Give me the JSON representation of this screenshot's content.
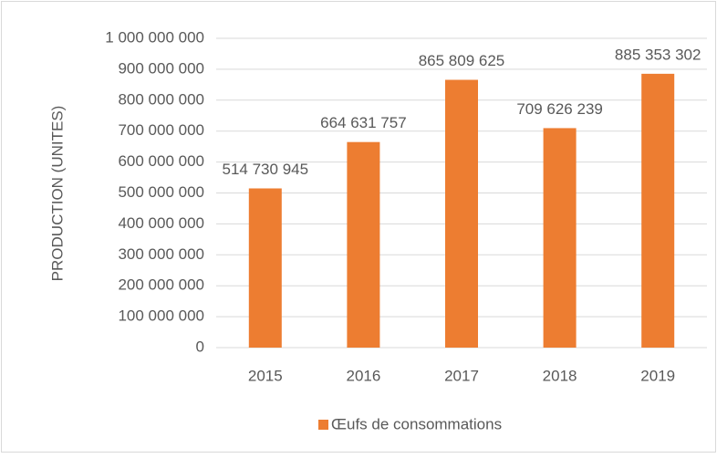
{
  "chart_data": {
    "type": "bar",
    "y_axis_label": "PRODUCTION (UNITES)",
    "categories": [
      "2015",
      "2016",
      "2017",
      "2018",
      "2019"
    ],
    "series": [
      {
        "name": "Œufs de consommations",
        "color": "#ed7d31",
        "values": [
          514730945,
          664631757,
          865809625,
          709626239,
          885353302
        ],
        "value_labels": [
          "514 730 945",
          "664 631 757",
          "865 809 625",
          "709 626 239",
          "885 353 302"
        ]
      }
    ],
    "ylim": [
      0,
      1000000000
    ],
    "yticks": [
      0,
      {
        "value": 100000000,
        "label": "100 000 000"
      },
      {
        "value": 200000000,
        "label": "200 000 000"
      },
      {
        "value": 300000000,
        "label": "300 000 000"
      },
      {
        "value": 400000000,
        "label": "400 000 000"
      },
      {
        "value": 500000000,
        "label": "500 000 000"
      },
      {
        "value": 600000000,
        "label": "600 000 000"
      },
      {
        "value": 700000000,
        "label": "700 000 000"
      },
      {
        "value": 800000000,
        "label": "800 000 000"
      },
      {
        "value": 900000000,
        "label": "900 000 000"
      },
      {
        "value": 1000000000,
        "label": "1 000 000 000"
      }
    ],
    "grid": true,
    "legend": "bottom"
  }
}
